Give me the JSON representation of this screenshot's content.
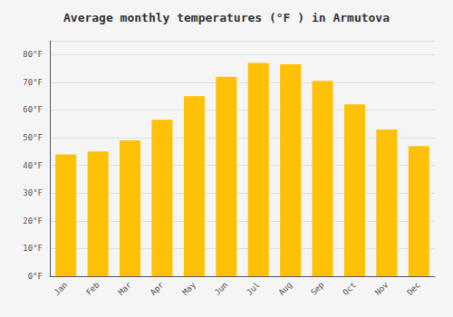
{
  "chart_data": {
    "type": "bar",
    "title": "Average monthly temperatures (°F ) in Armutova",
    "categories": [
      "Jan",
      "Feb",
      "Mar",
      "Apr",
      "May",
      "Jun",
      "Jul",
      "Aug",
      "Sep",
      "Oct",
      "Nov",
      "Dec"
    ],
    "values": [
      44,
      45,
      49,
      56.5,
      65,
      72,
      77,
      76.5,
      70.5,
      62,
      53,
      47
    ],
    "color": "#FFC107",
    "ylim": [
      0,
      85
    ],
    "yticks": [
      {
        "value": 0,
        "label": "0°F"
      },
      {
        "value": 10,
        "label": "10°F"
      },
      {
        "value": 20,
        "label": "20°F"
      },
      {
        "value": 30,
        "label": "30°F"
      },
      {
        "value": 40,
        "label": "40°F"
      },
      {
        "value": 50,
        "label": "50°F"
      },
      {
        "value": 60,
        "label": "60°F"
      },
      {
        "value": 70,
        "label": "70°F"
      },
      {
        "value": 80,
        "label": "80°F"
      }
    ],
    "grid": true
  }
}
